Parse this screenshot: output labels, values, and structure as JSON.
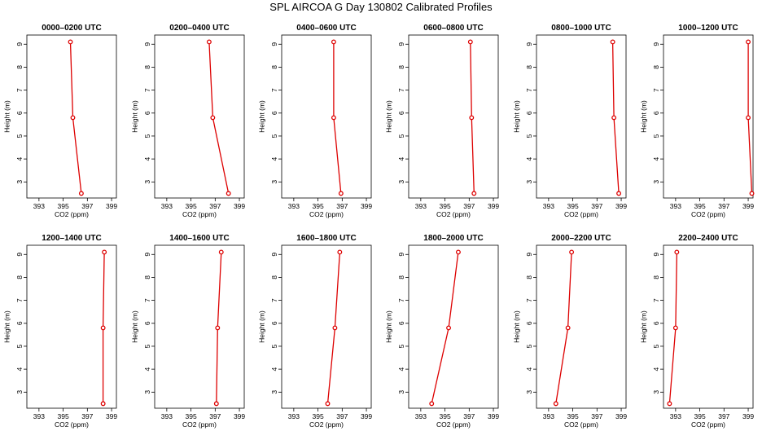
{
  "title": "SPL AIRCOA G  Day 130802  Calibrated Profiles",
  "chart_data": {
    "type": "line",
    "title": "SPL AIRCOA G  Day 130802  Calibrated Profiles",
    "xlabel": "CO2 (ppm)",
    "ylabel": "Height (m)",
    "xlim": [
      392,
      399.4
    ],
    "ylim": [
      2.3,
      9.4
    ],
    "x_ticks": [
      393,
      395,
      397,
      399
    ],
    "x_tick_labels": [
      "393",
      "395",
      "397",
      "399"
    ],
    "y_ticks": [
      3,
      4,
      5,
      6,
      7,
      8,
      9
    ],
    "y_tick_labels": [
      "3",
      "4",
      "5",
      "6",
      "7",
      "8",
      "9"
    ],
    "heights": [
      9.1,
      5.8,
      2.5
    ],
    "series_color": "#dd0000",
    "grid": false,
    "panels": [
      {
        "title": "0000–0200 UTC",
        "co2": [
          395.6,
          395.8,
          396.5
        ]
      },
      {
        "title": "0200–0400 UTC",
        "co2": [
          396.5,
          396.8,
          398.1
        ]
      },
      {
        "title": "0400–0600 UTC",
        "co2": [
          396.3,
          396.3,
          396.9
        ]
      },
      {
        "title": "0600–0800 UTC",
        "co2": [
          397.1,
          397.2,
          397.4
        ]
      },
      {
        "title": "0800–1000 UTC",
        "co2": [
          398.3,
          398.4,
          398.8
        ]
      },
      {
        "title": "1000–1200 UTC",
        "co2": [
          399.0,
          399.0,
          399.3
        ]
      },
      {
        "title": "1200–1400 UTC",
        "co2": [
          398.4,
          398.3,
          398.3
        ]
      },
      {
        "title": "1400–1600 UTC",
        "co2": [
          397.5,
          397.2,
          397.1
        ]
      },
      {
        "title": "1600–1800 UTC",
        "co2": [
          396.8,
          396.4,
          395.8
        ]
      },
      {
        "title": "1800–2000 UTC",
        "co2": [
          396.1,
          395.3,
          393.9
        ]
      },
      {
        "title": "2000–2200 UTC",
        "co2": [
          394.9,
          394.6,
          393.6
        ]
      },
      {
        "title": "2200–2400 UTC",
        "co2": [
          393.1,
          393.0,
          392.5
        ]
      }
    ]
  }
}
